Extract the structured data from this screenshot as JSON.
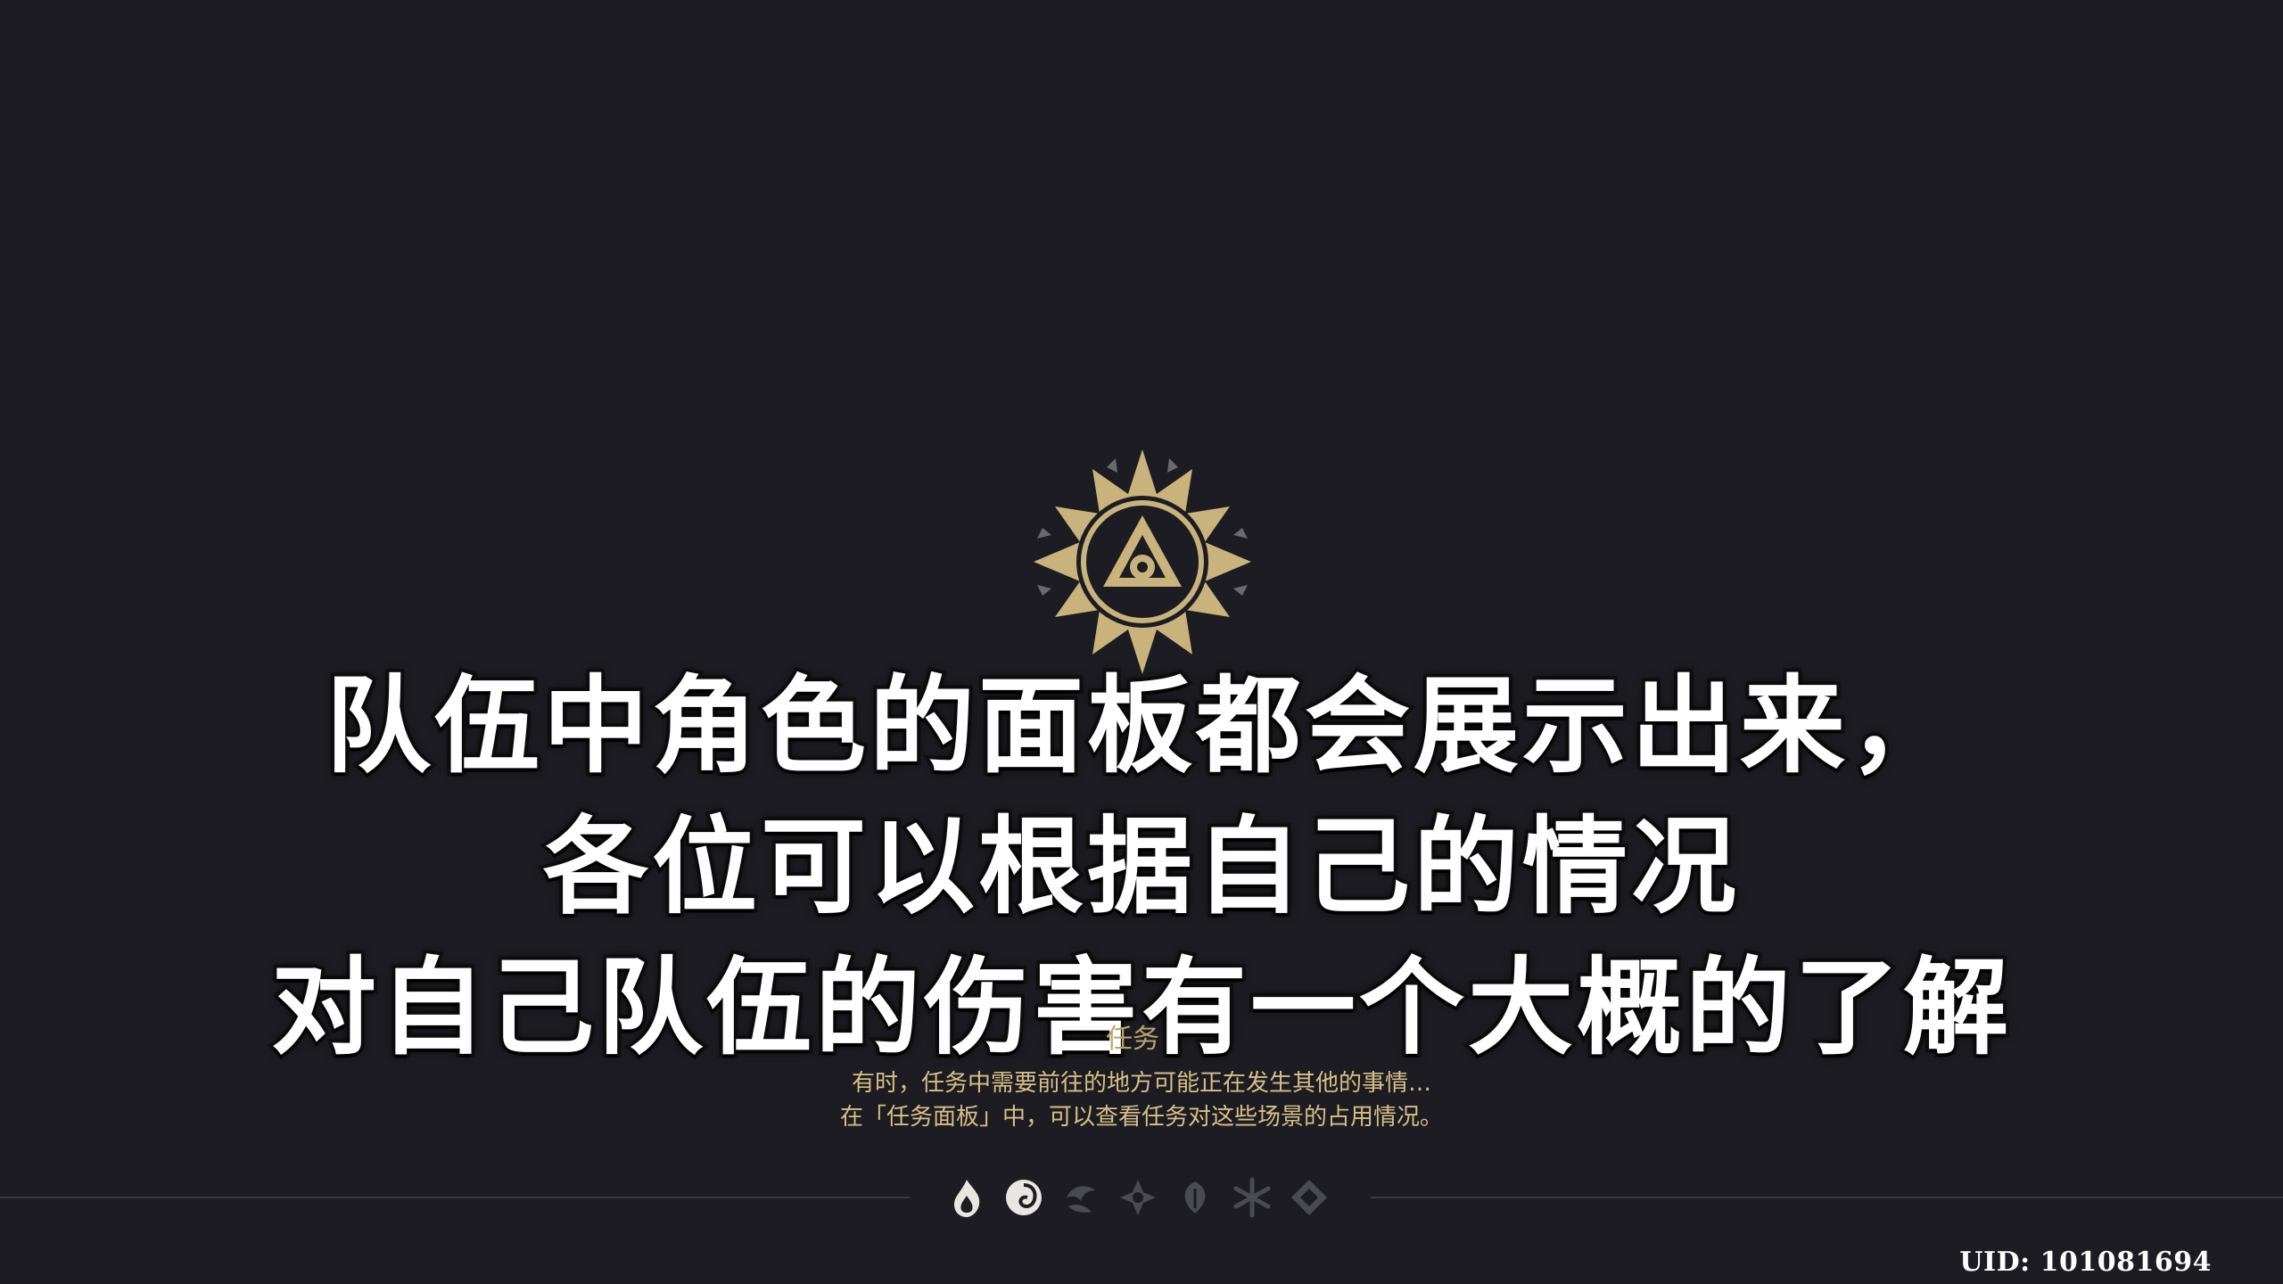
{
  "subtitles": [
    "队伍中角色的面板都会展示出来，",
    "各位可以根据自己的情况",
    "对自己队伍的伤害有一个大概的了解"
  ],
  "quest_label": "任务",
  "tip": {
    "line1": "有时，任务中需要前往的地方可能正在发生其他的事情…",
    "line2": "在「任务面板」中，可以查看任务对这些场景的占用情况。"
  },
  "elements": [
    {
      "name": "pyro-icon",
      "active": true
    },
    {
      "name": "hydro-icon",
      "active": true
    },
    {
      "name": "anemo-icon",
      "active": false
    },
    {
      "name": "electro-icon",
      "active": false
    },
    {
      "name": "dendro-icon",
      "active": false
    },
    {
      "name": "cryo-icon",
      "active": false
    },
    {
      "name": "geo-icon",
      "active": false
    }
  ],
  "uid": "UID: 101081694",
  "colors": {
    "background": "#1c1c22",
    "emblem_gold": "#c9b27c",
    "tip_text": "#d8bf88",
    "inactive_icon": "#4a4a52"
  }
}
